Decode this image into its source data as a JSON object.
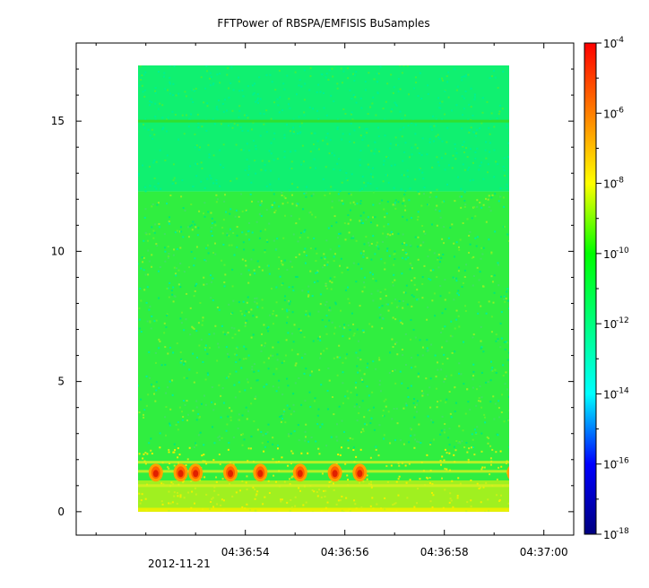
{
  "chart_data": {
    "type": "heatmap",
    "title": "FFTPower of RBSPA/EMFISIS  BuSamples",
    "date_label": "2012-11-21",
    "x": {
      "ticks": [
        "04:36:54",
        "04:36:56",
        "04:36:58",
        "04:37:00"
      ],
      "tick_seconds": [
        54,
        56,
        58,
        60
      ],
      "range_seconds": [
        50.6,
        60.6
      ],
      "data_span_seconds": [
        51.8,
        59.4
      ]
    },
    "y": {
      "ticks": [
        "0",
        "5",
        "10",
        "15"
      ],
      "tick_values": [
        0,
        5,
        10,
        15
      ],
      "range": [
        -0.9,
        18.0
      ],
      "data_span": [
        0,
        17.5
      ]
    },
    "colorbar": {
      "scale": "log",
      "range": [
        1e-18,
        0.0001
      ],
      "tick_base": "10",
      "tick_exponents": [
        "-18",
        "-16",
        "-14",
        "-12",
        "-10",
        "-8",
        "-6",
        "-4"
      ],
      "colormap": [
        "#00007f",
        "#0000ff",
        "#00ffff",
        "#00ff7f",
        "#00ff00",
        "#ffff00",
        "#ff7f00",
        "#ff0000"
      ]
    },
    "bands": [
      {
        "y": [
          12.3,
          17.5
        ],
        "level": 1e-12,
        "color": "#10f070"
      },
      {
        "y": [
          1.2,
          12.3
        ],
        "level": 1e-10,
        "color": "#30ee40"
      },
      {
        "y": [
          0,
          1.2
        ],
        "level": 1e-09,
        "color": "#a0f020"
      }
    ],
    "line_feature": {
      "y": 15.0,
      "level": 1e-10
    },
    "bursts_seconds": [
      52.2,
      52.7,
      53.0,
      53.7,
      54.3,
      55.1,
      55.8,
      56.3,
      59.4
    ]
  }
}
